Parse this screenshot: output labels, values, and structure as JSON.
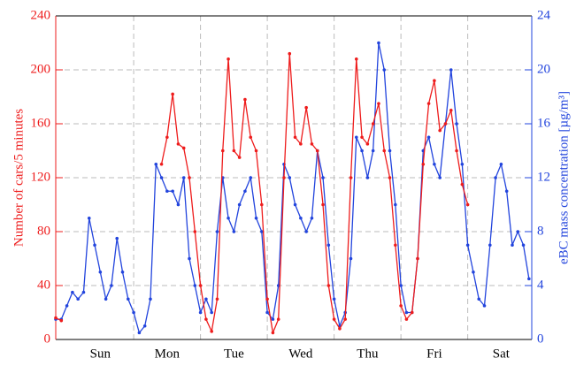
{
  "chart_data": {
    "type": "line",
    "ylabel": "Number of cars/5 minutes",
    "y2label": "eBC mass concentration [µg/m³]",
    "x": [
      -4,
      -2,
      0,
      2,
      4,
      6,
      8,
      10,
      12,
      14,
      16,
      18,
      20,
      22,
      24,
      26,
      28,
      30,
      32,
      34,
      36,
      38,
      40,
      42,
      44,
      46,
      48,
      50,
      52,
      54,
      56,
      58,
      60,
      62,
      64,
      66,
      68,
      70,
      72,
      74,
      76,
      78,
      80,
      82,
      84,
      86,
      88,
      90,
      92,
      94,
      96,
      98,
      100,
      102,
      104,
      106,
      108,
      110,
      112,
      114,
      116,
      118,
      120,
      122,
      124,
      126,
      128,
      130,
      132,
      134,
      136,
      138,
      140,
      142,
      144,
      146,
      148,
      150,
      152,
      154,
      156,
      158,
      160,
      162,
      164,
      166
    ],
    "xlim": [
      -4,
      167
    ],
    "xticks": [
      {
        "value": 12,
        "label": "Sun"
      },
      {
        "value": 36,
        "label": "Mon"
      },
      {
        "value": 60,
        "label": "Tue"
      },
      {
        "value": 84,
        "label": "Wed"
      },
      {
        "value": 108,
        "label": "Thu"
      },
      {
        "value": 132,
        "label": "Fri"
      },
      {
        "value": 156,
        "label": "Sat"
      }
    ],
    "ylim": [
      0,
      240
    ],
    "yticks": [
      0,
      40,
      80,
      120,
      160,
      200,
      240
    ],
    "y2lim": [
      0,
      24
    ],
    "y2ticks": [
      0,
      4,
      8,
      12,
      16,
      20,
      24
    ],
    "grid": true,
    "series": [
      {
        "color": "#ee1c1c",
        "values": [
          16,
          14,
          null,
          null,
          null,
          null,
          null,
          null,
          null,
          null,
          null,
          null,
          null,
          null,
          null,
          null,
          null,
          null,
          null,
          130,
          150,
          182,
          145,
          142,
          120,
          80,
          40,
          15,
          6,
          30,
          140,
          208,
          140,
          135,
          178,
          150,
          140,
          100,
          30,
          5,
          15,
          120,
          212,
          150,
          145,
          172,
          145,
          140,
          100,
          40,
          15,
          8,
          15,
          120,
          208,
          150,
          145,
          160,
          175,
          140,
          120,
          70,
          25,
          15,
          20,
          60,
          130,
          175,
          192,
          155,
          160,
          170,
          140,
          115,
          100,
          null,
          null,
          null,
          null,
          null,
          null,
          null,
          null,
          null,
          null,
          null
        ]
      },
      {
        "color": "#2244dd",
        "axis": "y2",
        "values": [
          1.5,
          1.5,
          2.5,
          3.5,
          3,
          3.5,
          9,
          7,
          5,
          3,
          4,
          7.5,
          5,
          3,
          2,
          0.5,
          1,
          3,
          13,
          12,
          11,
          11,
          10,
          12,
          6,
          4,
          2,
          3,
          2,
          8,
          12,
          9,
          8,
          10,
          11,
          12,
          9,
          8,
          2,
          1.5,
          4,
          13,
          12,
          10,
          9,
          8,
          9,
          14,
          12,
          7,
          3,
          1,
          2,
          6,
          15,
          14,
          12,
          14,
          22,
          20,
          14,
          10,
          4,
          2,
          2,
          6,
          14,
          15,
          13,
          12,
          16,
          20,
          16,
          13,
          7,
          5,
          3,
          2.5,
          7,
          12,
          13,
          11,
          7,
          8,
          7,
          4.5
        ]
      }
    ]
  }
}
